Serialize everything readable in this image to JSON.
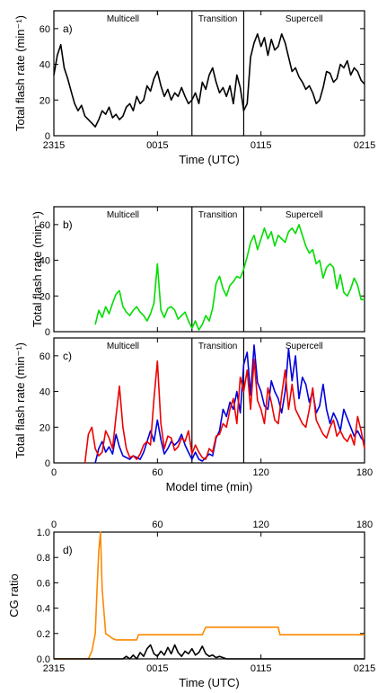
{
  "chart_data": [
    {
      "panel": "a)",
      "type": "line",
      "xlabel": "Time (UTC)",
      "ylabel": "Total flash rate (min⁻¹)",
      "ylim": [
        0,
        70
      ],
      "xlim": [
        0,
        180
      ],
      "x_ticks": [
        0,
        60,
        120,
        180
      ],
      "x_tick_labels": [
        "2315",
        "0015",
        "0115",
        "0215"
      ],
      "y_ticks": [
        0,
        20,
        40,
        60
      ],
      "phase_dividers": [
        80,
        110
      ],
      "phase_labels": [
        "Multicell",
        "Transition",
        "Supercell"
      ],
      "series": [
        {
          "color": "#000000",
          "x": [
            0,
            2,
            4,
            6,
            8,
            10,
            12,
            14,
            16,
            18,
            20,
            22,
            24,
            26,
            28,
            30,
            32,
            34,
            36,
            38,
            40,
            42,
            44,
            46,
            48,
            50,
            52,
            54,
            56,
            58,
            60,
            62,
            64,
            66,
            68,
            70,
            72,
            74,
            76,
            78,
            80,
            82,
            84,
            86,
            88,
            90,
            92,
            94,
            96,
            98,
            100,
            102,
            104,
            106,
            108,
            110,
            112,
            114,
            116,
            118,
            120,
            122,
            124,
            126,
            128,
            130,
            132,
            134,
            136,
            138,
            140,
            142,
            144,
            146,
            148,
            150,
            152,
            154,
            156,
            158,
            160,
            162,
            164,
            166,
            168,
            170,
            172,
            174,
            176,
            178,
            180
          ],
          "y": [
            34,
            45,
            51,
            38,
            32,
            25,
            18,
            14,
            17,
            11,
            9,
            7,
            5,
            9,
            14,
            12,
            16,
            10,
            12,
            9,
            11,
            16,
            18,
            14,
            22,
            18,
            20,
            28,
            25,
            32,
            36,
            28,
            22,
            26,
            20,
            24,
            22,
            27,
            22,
            18,
            20,
            24,
            18,
            30,
            26,
            34,
            38,
            30,
            24,
            27,
            22,
            28,
            18,
            34,
            27,
            14,
            18,
            44,
            52,
            57,
            50,
            55,
            45,
            54,
            48,
            50,
            57,
            52,
            44,
            36,
            38,
            33,
            30,
            26,
            28,
            24,
            18,
            20,
            27,
            36,
            35,
            30,
            32,
            40,
            38,
            42,
            34,
            38,
            36,
            31,
            29
          ]
        }
      ]
    },
    {
      "panel": "b)",
      "type": "line",
      "xlabel": "",
      "ylabel": "Total flash rate (min⁻¹)",
      "ylim": [
        0,
        70
      ],
      "xlim": [
        0,
        180
      ],
      "x_ticks": [
        0,
        60,
        120,
        180
      ],
      "y_ticks": [
        0,
        20,
        40,
        60
      ],
      "phase_dividers": [
        80,
        110
      ],
      "phase_labels": [
        "Multicell",
        "Transition",
        "Supercell"
      ],
      "series": [
        {
          "color": "#00dd00",
          "x": [
            24,
            26,
            28,
            30,
            32,
            34,
            36,
            38,
            40,
            42,
            44,
            46,
            48,
            50,
            52,
            54,
            56,
            58,
            60,
            62,
            64,
            66,
            68,
            70,
            72,
            74,
            76,
            78,
            80,
            82,
            84,
            86,
            88,
            90,
            92,
            94,
            96,
            98,
            100,
            102,
            104,
            106,
            108,
            110,
            112,
            114,
            116,
            118,
            120,
            122,
            124,
            126,
            128,
            130,
            132,
            134,
            136,
            138,
            140,
            142,
            144,
            146,
            148,
            150,
            152,
            154,
            156,
            158,
            160,
            162,
            164,
            166,
            168,
            170,
            172,
            174,
            176,
            178,
            180
          ],
          "y": [
            4,
            12,
            8,
            14,
            10,
            16,
            21,
            23,
            14,
            11,
            9,
            12,
            14,
            11,
            9,
            6,
            10,
            16,
            38,
            12,
            8,
            13,
            14,
            12,
            7,
            9,
            11,
            6,
            2,
            6,
            1,
            4,
            9,
            6,
            13,
            27,
            31,
            24,
            20,
            26,
            28,
            31,
            30,
            35,
            42,
            50,
            54,
            46,
            52,
            58,
            52,
            56,
            48,
            54,
            52,
            50,
            56,
            58,
            55,
            60,
            54,
            48,
            44,
            46,
            38,
            40,
            30,
            36,
            38,
            36,
            24,
            32,
            22,
            20,
            24,
            30,
            26,
            18,
            18
          ]
        }
      ]
    },
    {
      "panel": "c)",
      "type": "line",
      "xlabel": "Model time (min)",
      "ylabel": "Total flash rate (min⁻¹)",
      "ylim": [
        0,
        70
      ],
      "xlim": [
        0,
        180
      ],
      "x_ticks": [
        0,
        60,
        120,
        180
      ],
      "x_tick_labels": [
        "0",
        "60",
        "120",
        "180"
      ],
      "y_ticks": [
        0,
        20,
        40,
        60
      ],
      "phase_dividers": [
        80,
        110
      ],
      "phase_labels": [
        "Multicell",
        "Transition",
        "Supercell"
      ],
      "series": [
        {
          "color": "#0000dd",
          "x": [
            24,
            26,
            28,
            30,
            32,
            34,
            36,
            38,
            40,
            42,
            44,
            46,
            48,
            50,
            52,
            54,
            56,
            58,
            60,
            62,
            64,
            66,
            68,
            70,
            72,
            74,
            76,
            78,
            80,
            82,
            84,
            86,
            88,
            90,
            92,
            94,
            96,
            98,
            100,
            102,
            104,
            106,
            108,
            110,
            112,
            114,
            116,
            118,
            120,
            122,
            124,
            126,
            128,
            130,
            132,
            134,
            136,
            138,
            140,
            142,
            144,
            146,
            148,
            150,
            152,
            154,
            156,
            158,
            160,
            162,
            164,
            166,
            168,
            170,
            172,
            174,
            176,
            178,
            180
          ],
          "y": [
            0,
            8,
            12,
            6,
            9,
            5,
            16,
            9,
            4,
            3,
            2,
            4,
            3,
            2,
            6,
            12,
            18,
            12,
            24,
            13,
            5,
            8,
            12,
            10,
            12,
            16,
            10,
            6,
            2,
            6,
            2,
            1,
            3,
            5,
            4,
            14,
            18,
            30,
            26,
            34,
            30,
            40,
            28,
            55,
            62,
            38,
            66,
            45,
            40,
            32,
            30,
            46,
            40,
            36,
            28,
            40,
            64,
            46,
            60,
            36,
            48,
            44,
            34,
            40,
            28,
            32,
            44,
            30,
            22,
            28,
            24,
            18,
            30,
            25,
            20,
            15,
            18,
            14,
            12
          ]
        },
        {
          "color": "#ee0000",
          "x": [
            18,
            20,
            22,
            24,
            26,
            28,
            30,
            32,
            34,
            36,
            38,
            40,
            42,
            44,
            46,
            48,
            50,
            52,
            54,
            56,
            58,
            60,
            62,
            64,
            66,
            68,
            70,
            72,
            74,
            76,
            78,
            80,
            82,
            84,
            86,
            88,
            90,
            92,
            94,
            96,
            98,
            100,
            102,
            104,
            106,
            108,
            110,
            112,
            114,
            116,
            118,
            120,
            122,
            124,
            126,
            128,
            130,
            132,
            134,
            136,
            138,
            140,
            142,
            144,
            146,
            148,
            150,
            152,
            154,
            156,
            158,
            160,
            162,
            164,
            166,
            168,
            170,
            172,
            174,
            176,
            178,
            180
          ],
          "y": [
            0,
            16,
            20,
            8,
            4,
            6,
            18,
            14,
            8,
            26,
            43,
            20,
            8,
            3,
            4,
            2,
            5,
            10,
            12,
            10,
            36,
            57,
            22,
            8,
            15,
            14,
            7,
            9,
            14,
            12,
            18,
            5,
            10,
            6,
            3,
            2,
            8,
            6,
            15,
            16,
            22,
            20,
            30,
            36,
            22,
            48,
            40,
            52,
            30,
            58,
            35,
            30,
            22,
            42,
            34,
            24,
            22,
            38,
            52,
            30,
            44,
            30,
            26,
            22,
            20,
            30,
            42,
            24,
            20,
            16,
            14,
            20,
            24,
            15,
            18,
            14,
            12,
            16,
            10,
            26,
            18,
            8
          ]
        }
      ]
    },
    {
      "panel": "d)",
      "type": "line",
      "xlabel": "Time (UTC)",
      "ylabel": "CG ratio",
      "ylim": [
        0,
        1.0
      ],
      "xlim": [
        0,
        180
      ],
      "x_ticks": [
        0,
        60,
        120,
        180
      ],
      "x_tick_labels": [
        "2315",
        "0015",
        "0115",
        "0215"
      ],
      "top_tick_labels": [
        "0",
        "60",
        "120",
        "180"
      ],
      "y_ticks": [
        0,
        0.2,
        0.4,
        0.6,
        0.8,
        1.0
      ],
      "y_tick_labels": [
        "0.0",
        "0.2",
        "0.4",
        "0.6",
        "0.8",
        "1.0"
      ],
      "series": [
        {
          "color": "#ff8800",
          "x": [
            0,
            20,
            22,
            24,
            25,
            26,
            27,
            28,
            30,
            32,
            34,
            36,
            38,
            40,
            42,
            44,
            46,
            48,
            49,
            50,
            52,
            60,
            68,
            80,
            82,
            84,
            86,
            88,
            100,
            120,
            130,
            131,
            132,
            150,
            160,
            180
          ],
          "y": [
            0,
            0,
            0.06,
            0.2,
            0.55,
            0.85,
            1.0,
            0.55,
            0.2,
            0.18,
            0.16,
            0.15,
            0.15,
            0.15,
            0.15,
            0.15,
            0.15,
            0.15,
            0.19,
            0.19,
            0.19,
            0.19,
            0.19,
            0.19,
            0.19,
            0.19,
            0.19,
            0.25,
            0.25,
            0.25,
            0.25,
            0.19,
            0.19,
            0.19,
            0.19,
            0.19
          ]
        },
        {
          "color": "#000000",
          "x": [
            0,
            40,
            42,
            44,
            46,
            48,
            50,
            52,
            54,
            56,
            58,
            60,
            62,
            64,
            66,
            68,
            70,
            72,
            74,
            76,
            78,
            80,
            82,
            84,
            86,
            88,
            90,
            92,
            94,
            96,
            98,
            100,
            180
          ],
          "y": [
            0,
            0,
            0.02,
            0,
            0.03,
            0,
            0.05,
            0.02,
            0.08,
            0.11,
            0.04,
            0.02,
            0.06,
            0.03,
            0.09,
            0.04,
            0.11,
            0.05,
            0.02,
            0.06,
            0.04,
            0.08,
            0.03,
            0.05,
            0.1,
            0.04,
            0.02,
            0.03,
            0.01,
            0.02,
            0.01,
            0,
            0
          ]
        }
      ]
    }
  ]
}
